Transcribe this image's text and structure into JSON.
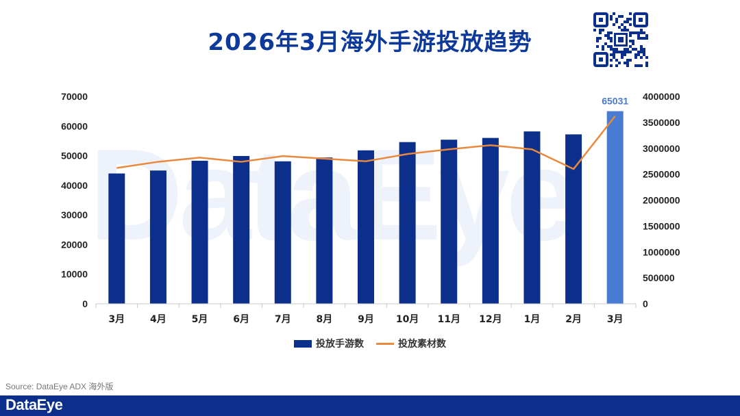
{
  "page": {
    "title": "2026年3月海外手游投放趋势",
    "source": "Source: DataEye ADX 海外版",
    "footer_logo": "DataEye",
    "watermark": "DataEye"
  },
  "colors": {
    "primary": "#0b2f8a",
    "highlight_bar": "#4a7bd3",
    "line": "#e8893e",
    "axis_text": "#222222",
    "title": "#0d3a9a"
  },
  "chart_data": {
    "type": "bar+line",
    "categories": [
      "3月",
      "4月",
      "5月",
      "6月",
      "7月",
      "8月",
      "9月",
      "10月",
      "11月",
      "12月",
      "1月",
      "2月",
      "3月"
    ],
    "series": [
      {
        "name": "投放手游数",
        "type": "bar",
        "axis": "left",
        "values": [
          44000,
          45000,
          48300,
          49900,
          48100,
          49400,
          51800,
          54600,
          55400,
          56000,
          58200,
          57200,
          65031
        ]
      },
      {
        "name": "投放素材数",
        "type": "line",
        "axis": "right",
        "values": [
          2620000,
          2740000,
          2820000,
          2740000,
          2850000,
          2800000,
          2750000,
          2890000,
          2980000,
          3060000,
          2980000,
          2600000,
          3620000
        ]
      }
    ],
    "highlight_index": 12,
    "highlight_label": "65031",
    "y_left": {
      "min": 0,
      "max": 70000,
      "ticks": [
        0,
        10000,
        20000,
        30000,
        40000,
        50000,
        60000,
        70000
      ]
    },
    "y_right": {
      "min": 0,
      "max": 4000000,
      "ticks": [
        0,
        500000,
        1000000,
        1500000,
        2000000,
        2500000,
        3000000,
        3500000,
        4000000
      ]
    },
    "legend": [
      "投放手游数",
      "投放素材数"
    ],
    "legend_position": "bottom"
  }
}
